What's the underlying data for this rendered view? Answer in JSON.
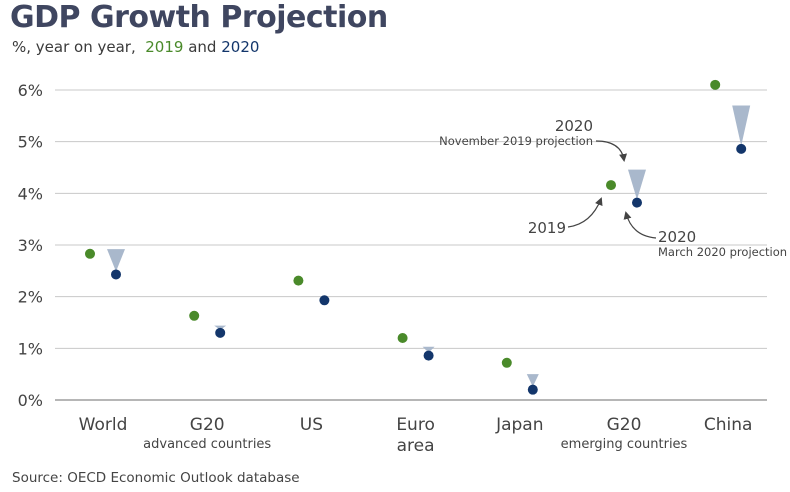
{
  "header": {
    "title": "GDP Growth Projection",
    "subtitle_prefix": "%, year on year,",
    "subtitle_2019": "2019",
    "subtitle_and": "and",
    "subtitle_2020": "2020"
  },
  "source": "Source: OECD Economic Outlook database",
  "colors": {
    "series_2019": "#4a8a2a",
    "series_2020": "#13366b",
    "drop_triangle": "#a9b8cc",
    "grid": "#c8c8c8"
  },
  "annotations": {
    "nov_year": "2020",
    "nov_label": "November 2019 projection",
    "mar_year": "2020",
    "mar_label": "March 2020 projection",
    "y2019": "2019"
  },
  "chart_data": {
    "type": "scatter",
    "title": "GDP Growth Projection",
    "subtitle": "%, year on year, 2019 and 2020",
    "ylim": [
      0,
      6
    ],
    "yticks": [
      "0%",
      "1%",
      "2%",
      "3%",
      "4%",
      "5%",
      "6%"
    ],
    "categories": [
      "World",
      "G20",
      "US",
      "Euro area",
      "Japan",
      "G20",
      "China"
    ],
    "category_sublabels": [
      "",
      "advanced countries",
      "",
      "",
      "",
      "emerging countries",
      ""
    ],
    "category_lines": [
      [
        "World"
      ],
      [
        "G20"
      ],
      [
        "US"
      ],
      [
        "Euro",
        "area"
      ],
      [
        "Japan"
      ],
      [
        "G20"
      ],
      [
        "China"
      ]
    ],
    "series": [
      {
        "name": "2019",
        "values": [
          2.83,
          1.63,
          2.31,
          1.2,
          0.72,
          4.16,
          6.1
        ]
      },
      {
        "name": "2020",
        "values": [
          2.43,
          1.3,
          1.93,
          0.86,
          0.2,
          3.82,
          4.86
        ]
      }
    ],
    "nov2019_projection_2020": [
      2.92,
      1.44,
      null,
      1.03,
      0.5,
      4.46,
      5.7
    ],
    "grid": true
  }
}
